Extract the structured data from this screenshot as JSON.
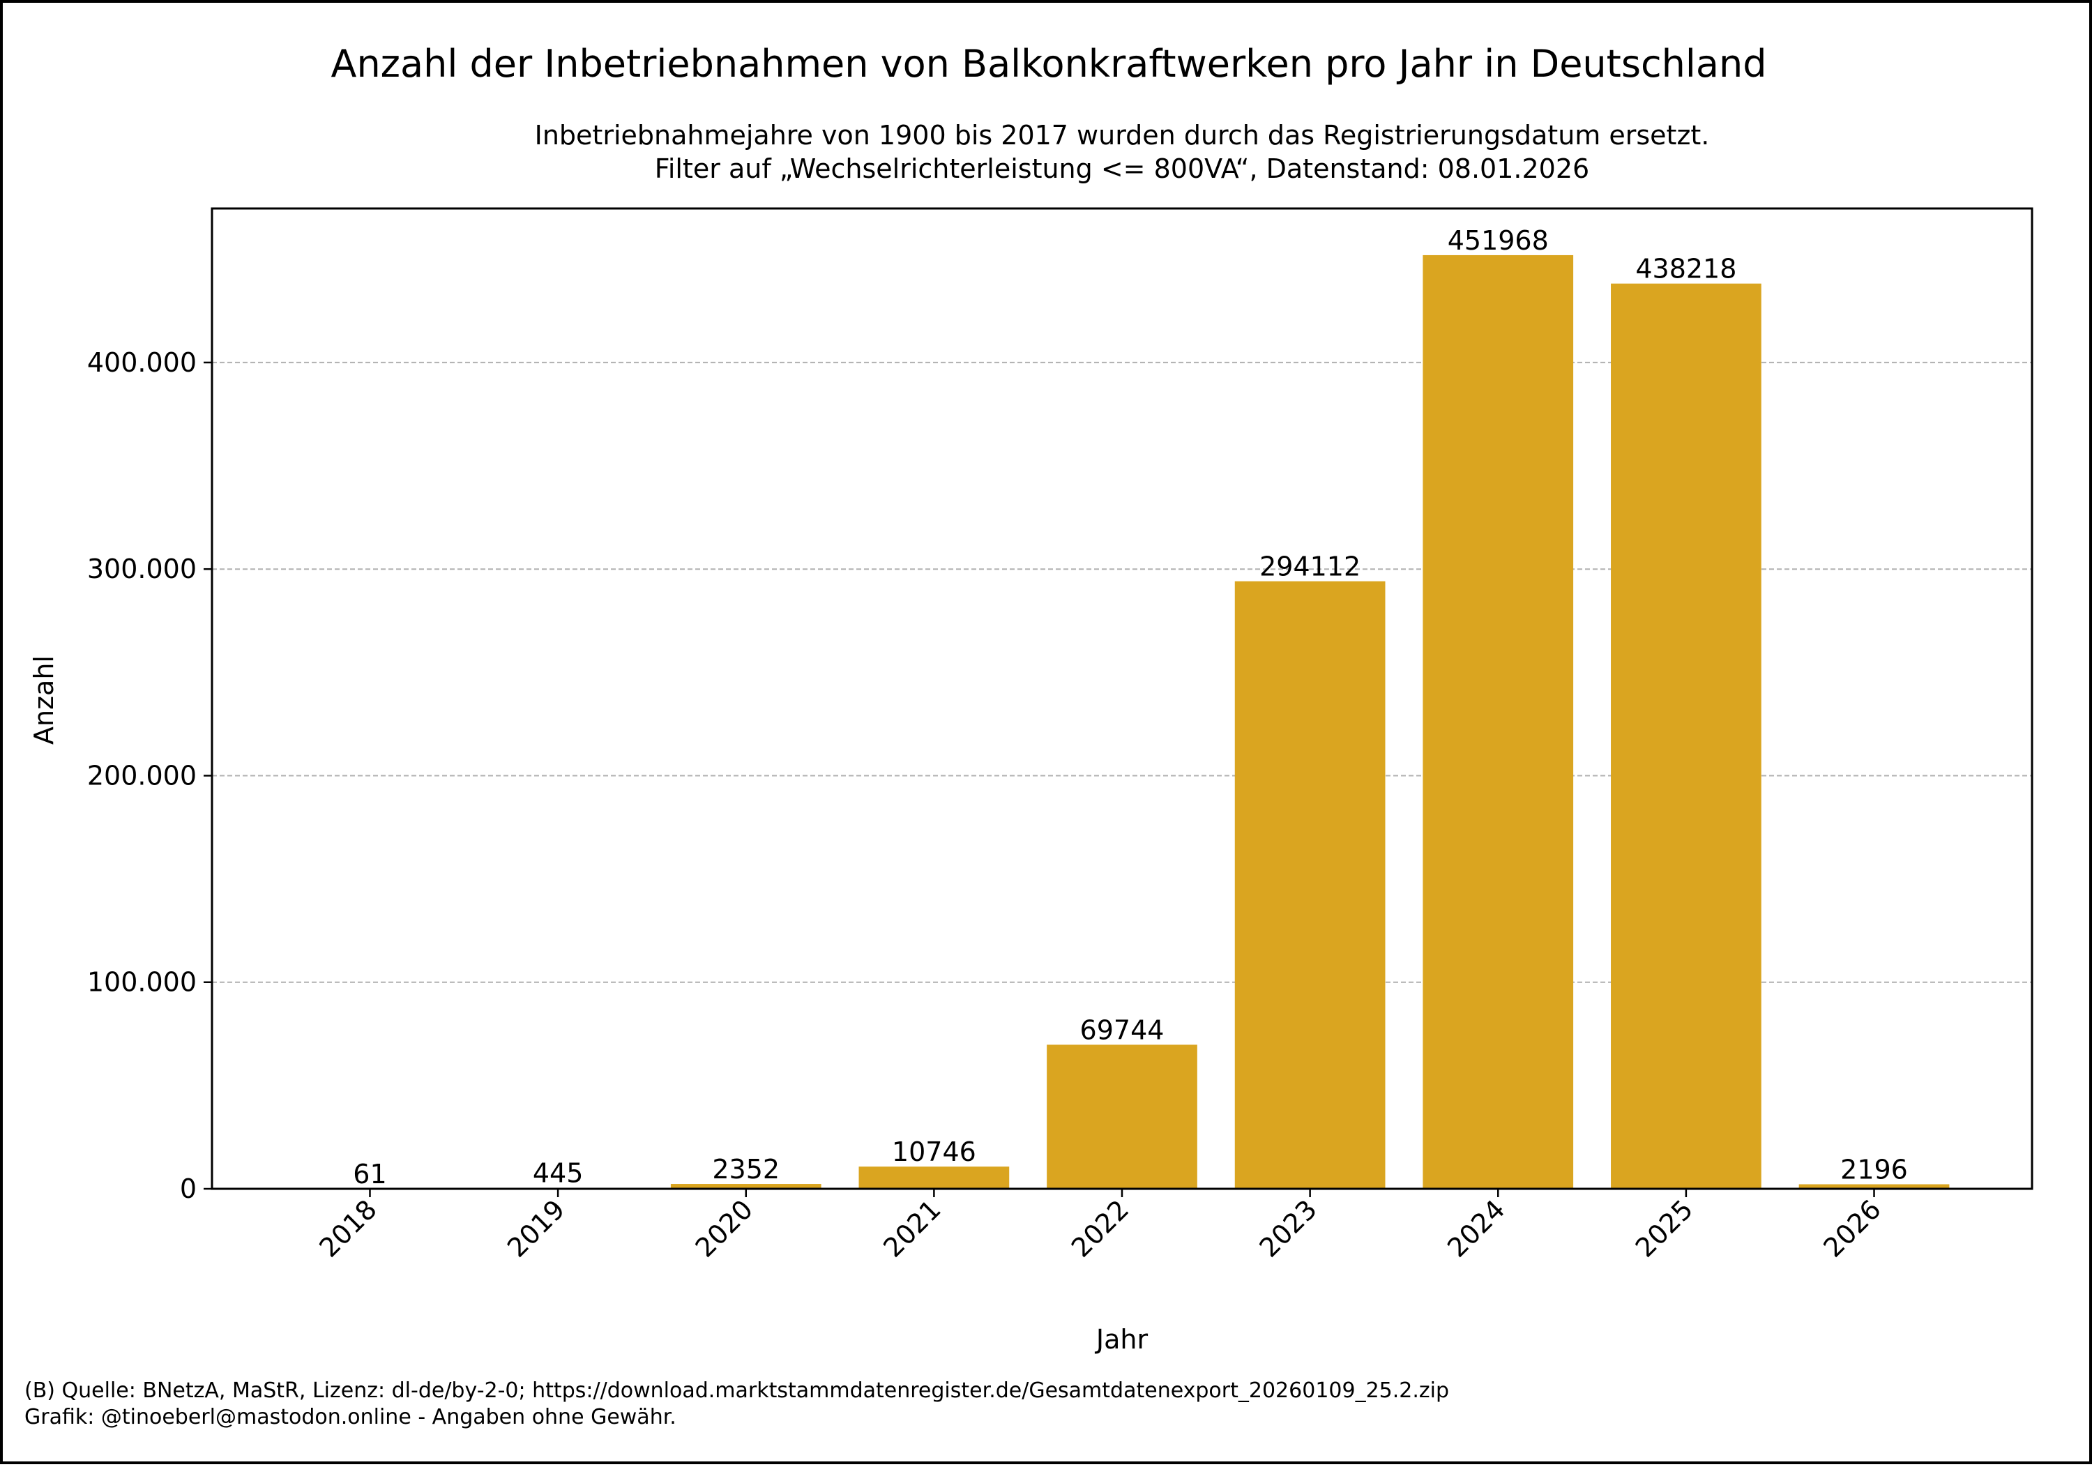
{
  "chart_data": {
    "type": "bar",
    "title": "Anzahl der Inbetriebnahmen von Balkonkraftwerken pro Jahr in Deutschland",
    "subtitle": [
      "Inbetriebnahmejahre von 1900 bis 2017 wurden durch das Registrierungsdatum ersetzt.",
      "Filter auf „Wechselrichterleistung <= 800VA“, Datenstand: 08.01.2026"
    ],
    "xlabel": "Jahr",
    "ylabel": "Anzahl",
    "categories": [
      "2018",
      "2019",
      "2020",
      "2021",
      "2022",
      "2023",
      "2024",
      "2025",
      "2026"
    ],
    "values": [
      61,
      445,
      2352,
      10746,
      69744,
      294112,
      451968,
      438218,
      2196
    ],
    "data_labels": [
      "61",
      "445",
      "2352",
      "10746",
      "69744",
      "294112",
      "451968",
      "438218",
      "2196"
    ],
    "ylim": [
      0,
      474566
    ],
    "yticks": [
      0,
      100000,
      200000,
      300000,
      400000
    ],
    "ytick_labels": [
      "0",
      "100.000",
      "200.000",
      "300.000",
      "400.000"
    ],
    "grid": "y-dashed",
    "bar_color": "#DAA520",
    "footer": [
      "(B) Quelle: BNetzA, MaStR, Lizenz: dl-de/by-2-0; https://download.marktstammdatenregister.de/Gesamtdatenexport_20260109_25.2.zip",
      "Grafik: @tinoeberl@mastodon.online - Angaben ohne Gewähr."
    ]
  }
}
